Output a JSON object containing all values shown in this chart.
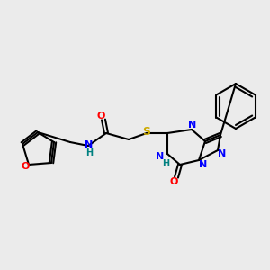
{
  "bg_color": "#ebebeb",
  "atom_colors": {
    "C": "#000000",
    "N": "#0000ff",
    "O": "#ff0000",
    "S": "#ccaa00",
    "H": "#000000"
  },
  "bond_color": "#000000",
  "bond_width": 1.5,
  "font_size": 9,
  "fig_size": [
    3.0,
    3.0
  ],
  "dpi": 100
}
